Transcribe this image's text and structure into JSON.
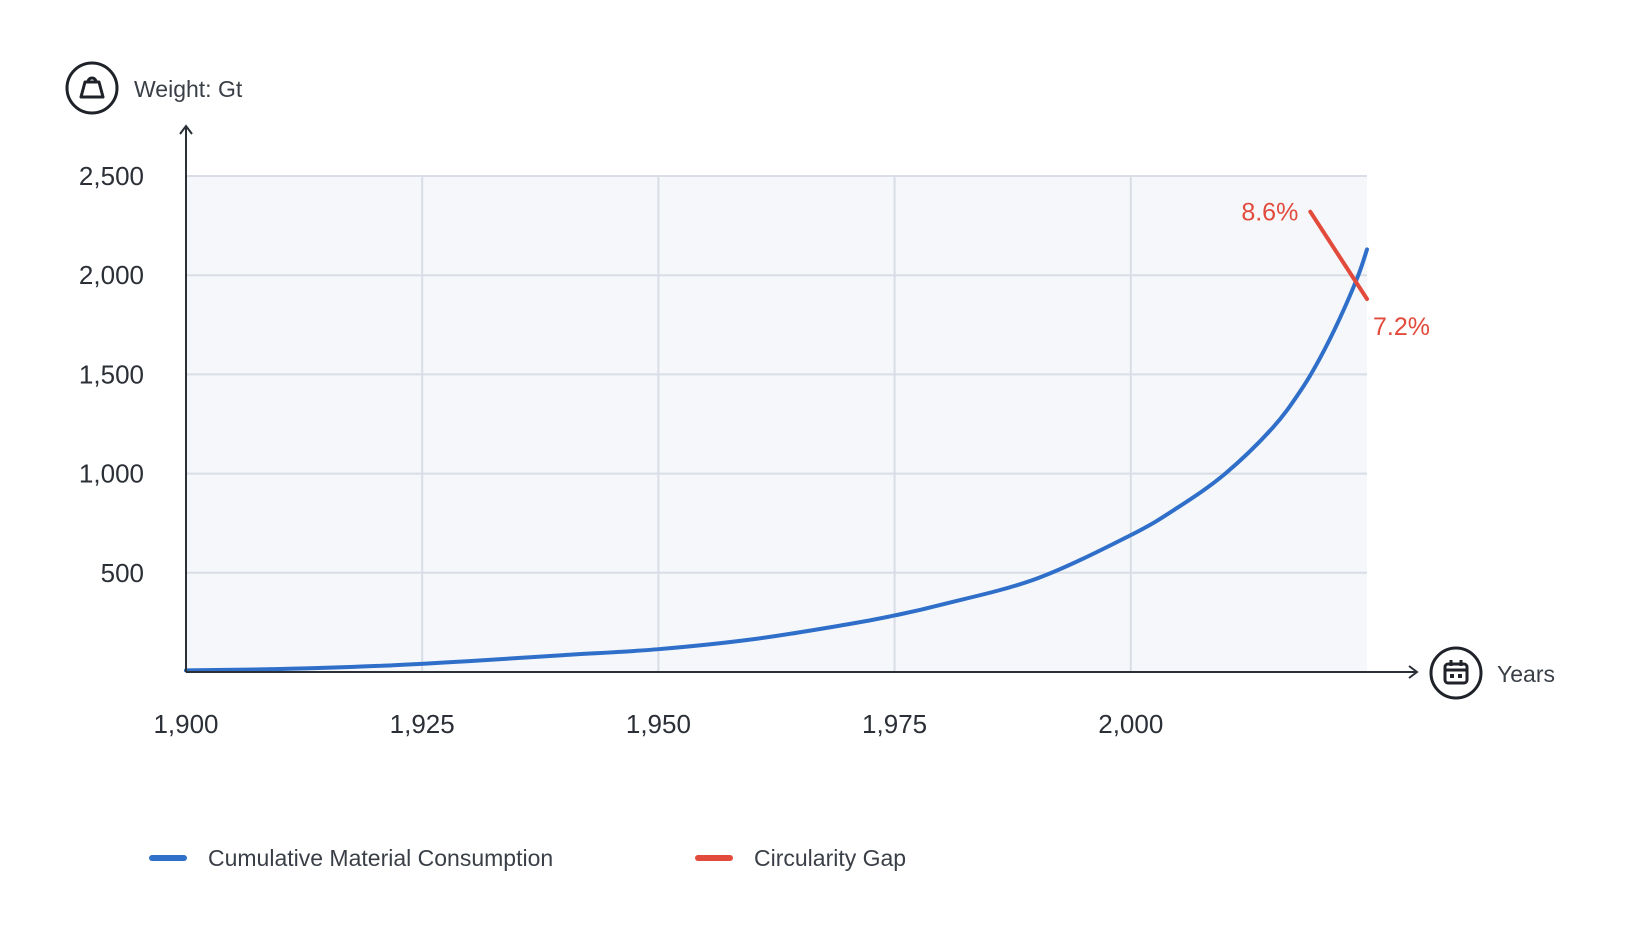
{
  "chart_data": {
    "type": "line",
    "ylabel": "Weight: Gt",
    "xlabel": "Years",
    "xlim": [
      1900,
      2025
    ],
    "ylim": [
      0,
      2500
    ],
    "x_ticks": [
      1900,
      1925,
      1950,
      1975,
      2000
    ],
    "x_tick_labels": [
      "1,900",
      "1,925",
      "1,950",
      "1,975",
      "2,000"
    ],
    "y_ticks": [
      500,
      1000,
      1500,
      2000,
      2500
    ],
    "y_tick_labels": [
      "500",
      "1,000",
      "1,500",
      "2,000",
      "2,500"
    ],
    "grid": true,
    "legend_position": "bottom-left",
    "series": [
      {
        "name": "Cumulative Material Consumption",
        "color": "#2f6fc9",
        "x": [
          1900,
          1910,
          1920,
          1930,
          1940,
          1950,
          1960,
          1970,
          1975,
          1980,
          1990,
          2000,
          2005,
          2010,
          2015,
          2018,
          2020,
          2022,
          2024,
          2025
        ],
        "y": [
          8,
          15,
          30,
          55,
          85,
          115,
          165,
          240,
          285,
          340,
          470,
          690,
          830,
          1000,
          1230,
          1420,
          1580,
          1770,
          1990,
          2130
        ]
      },
      {
        "name": "Circularity Gap",
        "color": "#e24a3b",
        "x": [
          2019,
          2025
        ],
        "y": [
          2320,
          1880
        ]
      }
    ],
    "annotations": [
      {
        "text": "8.6%",
        "x": 2019,
        "y": 2320,
        "color": "#e24a3b"
      },
      {
        "text": "7.2%",
        "x": 2025,
        "y": 1880,
        "color": "#e24a3b"
      }
    ]
  },
  "icons": {
    "y_axis_icon": "weight-icon",
    "x_axis_icon": "calendar-icon"
  },
  "colors": {
    "plot_background": "#f5f7fa",
    "grid": "#d9dde6",
    "axis": "#2b2f36"
  }
}
